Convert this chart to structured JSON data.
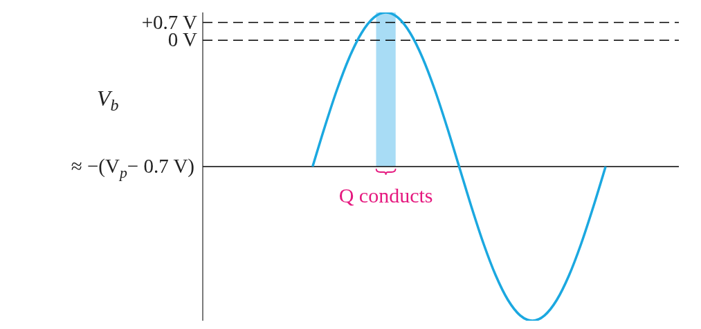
{
  "chart_data": {
    "type": "line",
    "ylabel": "V$_{b}$",
    "categories": [
      null,
      null,
      null,
      null,
      null,
      null,
      null,
      null,
      null,
      null,
      null,
      null,
      null,
      null,
      null,
      null,
      null,
      null,
      null,
      null,
      null,
      null,
      null,
      null,
      null,
      null,
      null,
      null,
      null,
      null,
      null,
      null,
      null,
      null,
      null,
      null,
      null,
      null,
      null,
      null
    ],
    "series": [
      {
        "color": "#1ba8e0",
        "values": [
          null,
          null,
          null,
          null,
          null,
          null,
          null,
          null,
          null,
          -5,
          -3.42,
          -1.95,
          -0.69,
          0.28,
          0.89,
          1.1,
          0.89,
          0.28,
          -0.69,
          -1.95,
          -3.42,
          -5,
          -6.58,
          -8.05,
          -9.31,
          -10.28,
          -10.89,
          -11.1,
          -10.89,
          -10.28,
          -9.31,
          -8.05,
          -6.58,
          -5,
          null,
          null,
          null,
          null,
          null,
          null
        ]
      }
    ],
    "ylim": [
      -11.1,
      1.1
    ],
    "yticks": [
      {
        "value": 0.7,
        "label": "+0.7 V"
      },
      {
        "value": 0,
        "label": "0 V"
      }
    ],
    "tick_labels": "y",
    "marker": "none",
    "line_style": "solid",
    "ref_lines": [
      {
        "axis": "y",
        "value": 0.7,
        "line_style": "dashed",
        "color": "#000000"
      },
      {
        "axis": "y",
        "value": 0,
        "line_style": "dashed",
        "color": "#000000"
      },
      {
        "axis": "y",
        "value": -5,
        "line_style": "solid",
        "color": "#000000",
        "label": "≈ −(V$_{p}$− 0.7 V)"
      }
    ],
    "annotations": [
      "Q conducts"
    ]
  }
}
